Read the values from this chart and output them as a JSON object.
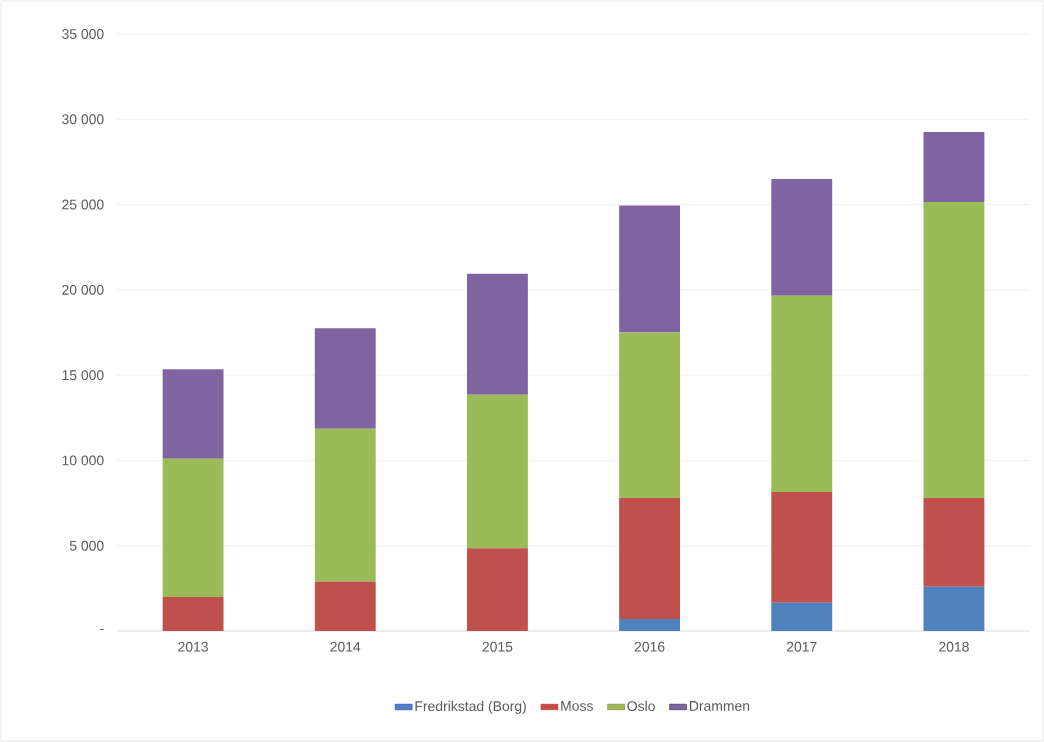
{
  "chart_data": {
    "type": "bar",
    "stacked": true,
    "categories": [
      "2013",
      "2014",
      "2015",
      "2016",
      "2017",
      "2018"
    ],
    "series": [
      {
        "name": "Fredrikstad (Borg)",
        "color": "#4f81bd",
        "values": [
          0,
          0,
          0,
          700,
          1650,
          2600
        ]
      },
      {
        "name": "Moss",
        "color": "#c0504d",
        "values": [
          2000,
          2900,
          4850,
          7100,
          6500,
          5200
        ]
      },
      {
        "name": "Oslo",
        "color": "#9bbb59",
        "values": [
          8100,
          8950,
          9000,
          9700,
          11500,
          17350
        ]
      },
      {
        "name": "Drammen",
        "color": "#8064a2",
        "values": [
          5250,
          5900,
          7100,
          7450,
          6850,
          4100
        ]
      }
    ],
    "ylim": [
      0,
      35000
    ],
    "yticks": [
      {
        "value": 0,
        "label": "-"
      },
      {
        "value": 5000,
        "label": "5 000"
      },
      {
        "value": 10000,
        "label": "10 000"
      },
      {
        "value": 15000,
        "label": "15 000"
      },
      {
        "value": 20000,
        "label": "20 000"
      },
      {
        "value": 25000,
        "label": "25 000"
      },
      {
        "value": 30000,
        "label": "30 000"
      },
      {
        "value": 35000,
        "label": "35 000"
      }
    ],
    "grid": "y",
    "legend": "bottom"
  }
}
